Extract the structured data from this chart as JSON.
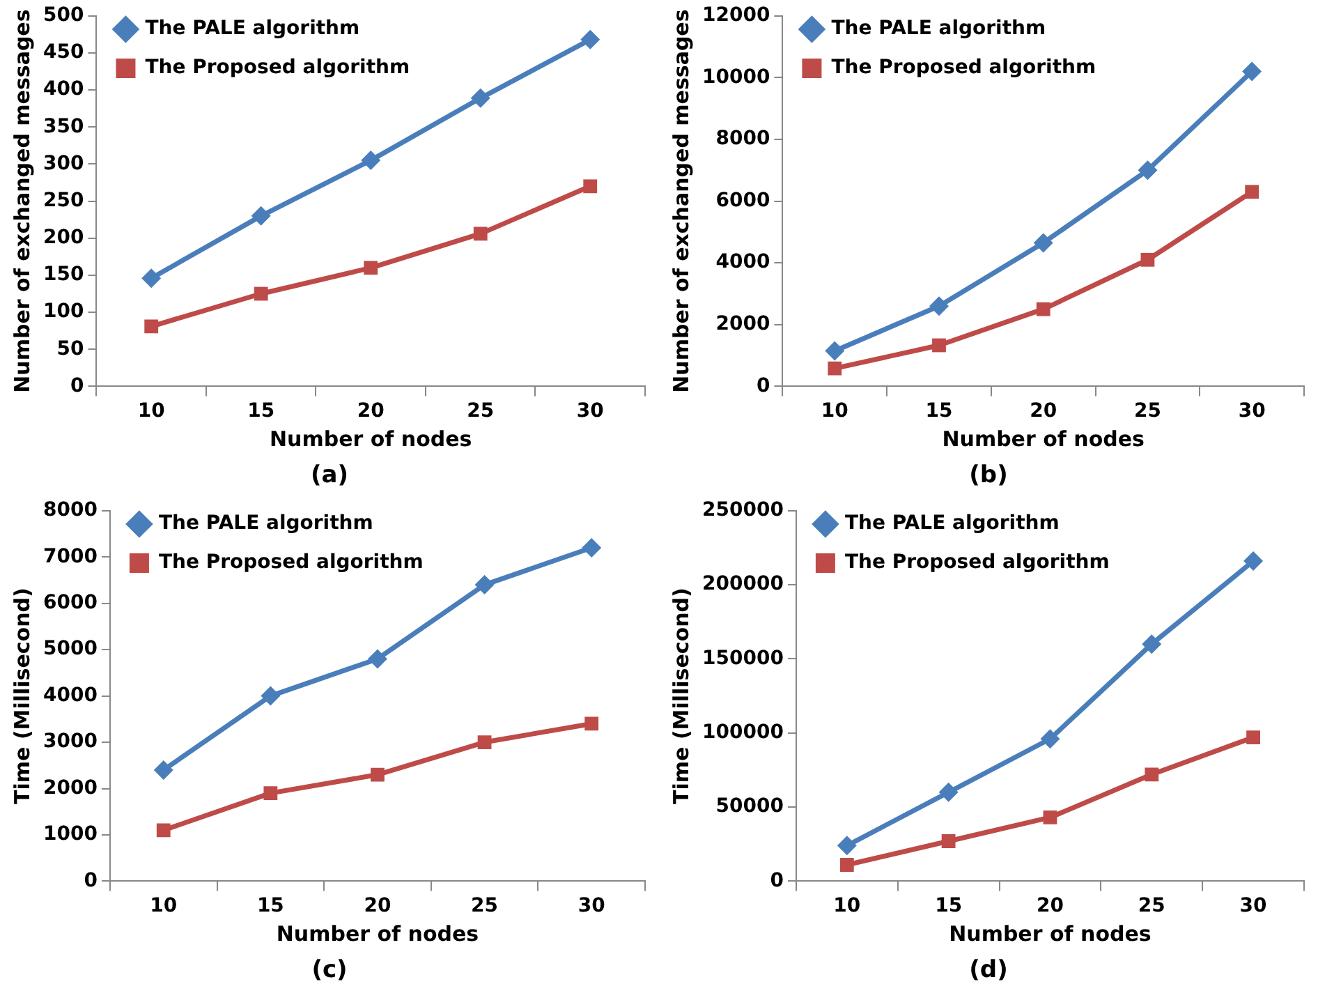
{
  "chart_data": [
    {
      "type": "line",
      "categories": [
        "10",
        "15",
        "20",
        "25",
        "30"
      ],
      "xlabel": "Number of nodes",
      "ylabel": "Number of exchanged messages",
      "ylim": [
        0,
        500
      ],
      "yticks": [
        0,
        50,
        100,
        150,
        200,
        250,
        300,
        350,
        400,
        450,
        500
      ],
      "grid": false,
      "legend": "top left",
      "annotations": [
        "(a)"
      ],
      "series": [
        {
          "name": "The PALE algorithm",
          "color": "#4a7ebb",
          "marker": "diamond",
          "values": [
            146,
            230,
            305,
            389,
            468
          ]
        },
        {
          "name": "The Proposed algorithm",
          "color": "#be4b48",
          "marker": "square",
          "values": [
            81,
            125,
            160,
            206,
            270
          ]
        }
      ]
    },
    {
      "type": "line",
      "categories": [
        "10",
        "15",
        "20",
        "25",
        "30"
      ],
      "xlabel": "Number of nodes",
      "ylabel": "Number of exchanged messages",
      "ylim": [
        0,
        12000
      ],
      "yticks": [
        0,
        2000,
        4000,
        6000,
        8000,
        10000,
        12000
      ],
      "grid": false,
      "legend": "top left",
      "annotations": [
        "(b)"
      ],
      "series": [
        {
          "name": "The PALE algorithm",
          "color": "#4a7ebb",
          "marker": "diamond",
          "values": [
            1150,
            2600,
            4650,
            7000,
            10200
          ]
        },
        {
          "name": "The Proposed algorithm",
          "color": "#be4b48",
          "marker": "square",
          "values": [
            580,
            1330,
            2500,
            4100,
            6300
          ]
        }
      ]
    },
    {
      "type": "line",
      "categories": [
        "10",
        "15",
        "20",
        "25",
        "30"
      ],
      "xlabel": "Number of nodes",
      "ylabel": "Time (Millisecond)",
      "ylim": [
        0,
        8000
      ],
      "yticks": [
        0,
        1000,
        2000,
        3000,
        4000,
        5000,
        6000,
        7000,
        8000
      ],
      "grid": false,
      "legend": "top left",
      "annotations": [
        "(c)"
      ],
      "series": [
        {
          "name": "The PALE algorithm",
          "color": "#4a7ebb",
          "marker": "diamond",
          "values": [
            2400,
            4000,
            4800,
            6400,
            7200
          ]
        },
        {
          "name": "The Proposed algorithm",
          "color": "#be4b48",
          "marker": "square",
          "values": [
            1100,
            1900,
            2300,
            3000,
            3400
          ]
        }
      ]
    },
    {
      "type": "line",
      "categories": [
        "10",
        "15",
        "20",
        "25",
        "30"
      ],
      "xlabel": "Number of nodes",
      "ylabel": "Time (Millisecond)",
      "ylim": [
        0,
        250000
      ],
      "yticks": [
        0,
        50000,
        100000,
        150000,
        200000,
        250000
      ],
      "grid": false,
      "legend": "top left",
      "annotations": [
        "(d)"
      ],
      "series": [
        {
          "name": "The PALE algorithm",
          "color": "#4a7ebb",
          "marker": "diamond",
          "values": [
            24000,
            60000,
            96000,
            160000,
            216000
          ]
        },
        {
          "name": "The Proposed algorithm",
          "color": "#be4b48",
          "marker": "square",
          "values": [
            11000,
            27000,
            43000,
            72000,
            97000
          ]
        }
      ]
    }
  ]
}
